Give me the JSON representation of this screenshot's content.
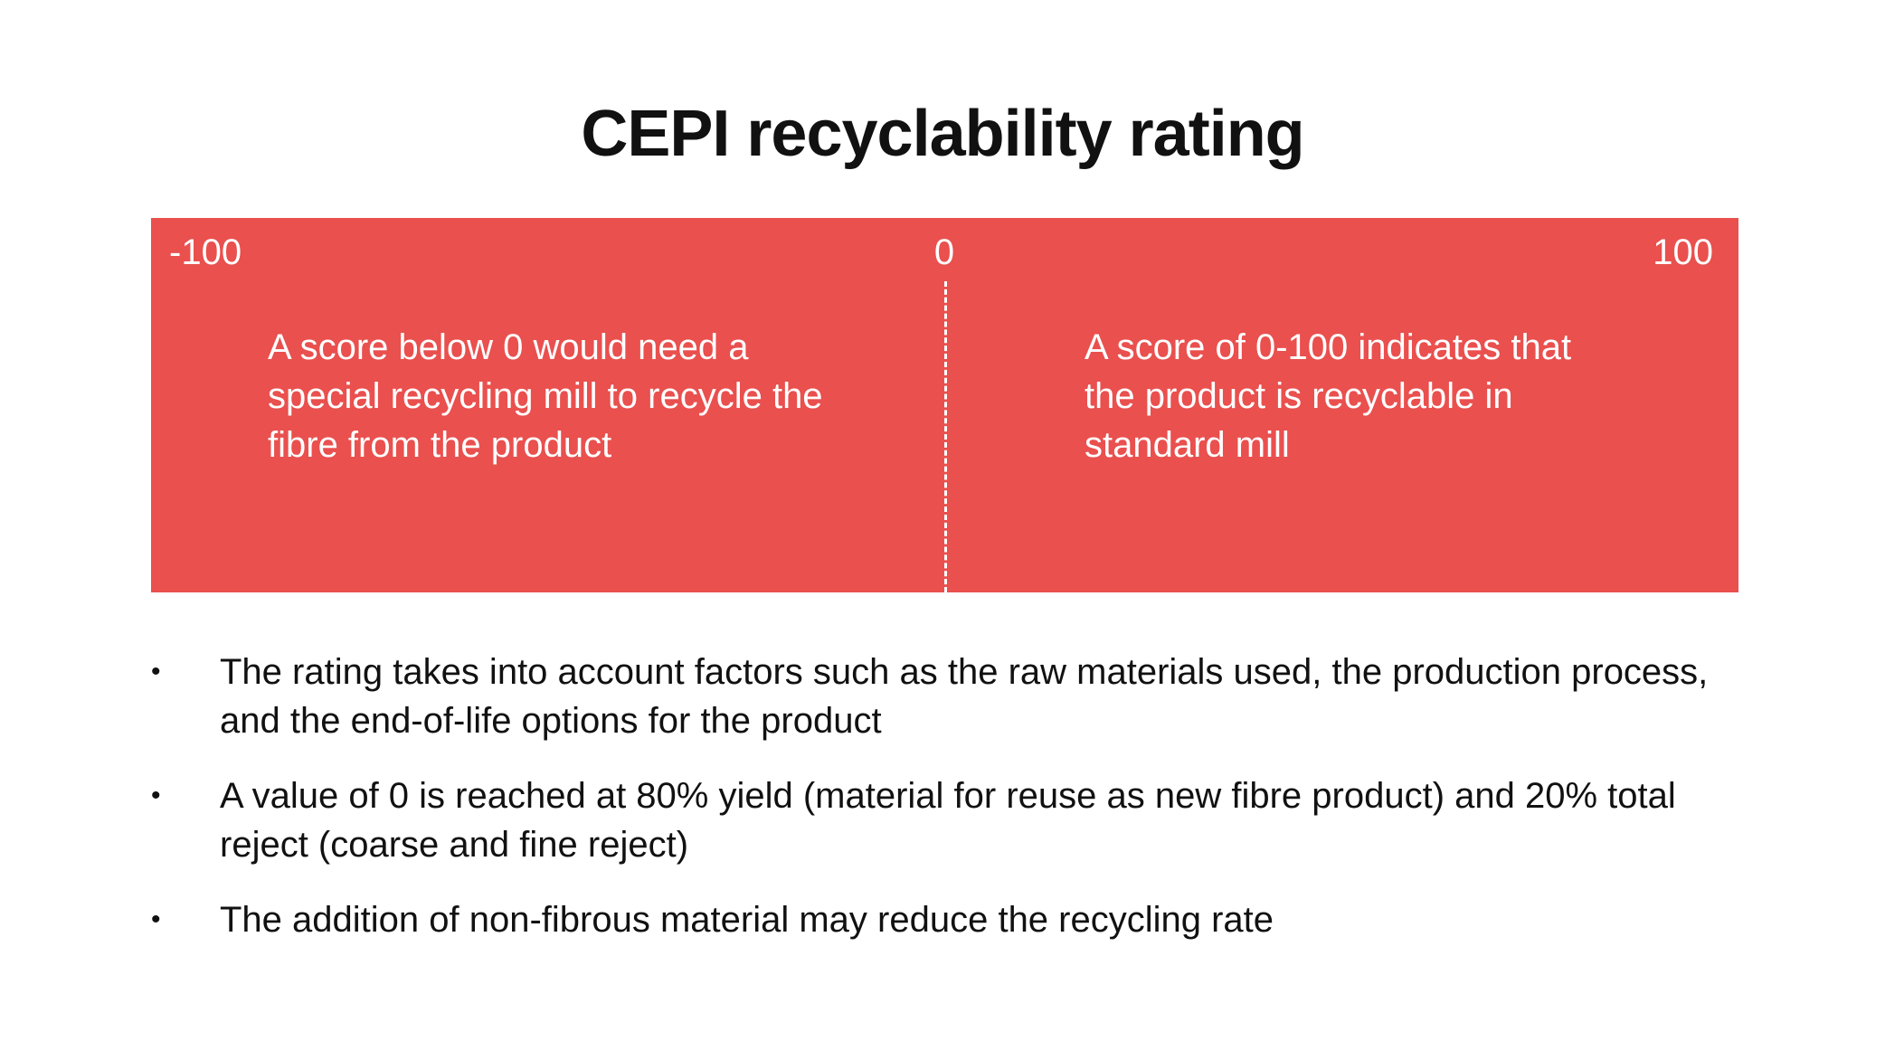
{
  "title": "CEPI recyclability rating",
  "scale": {
    "min_label": "-100",
    "mid_label": "0",
    "max_label": "100",
    "band_color": "#e9504e",
    "below_zero_text": "A score below 0 would need a special recycling mill to recycle the fibre from the product",
    "above_zero_text": "A score of 0-100 indicates that the product is recyclable in standard mill"
  },
  "bullets": [
    {
      "marker": "•",
      "text": "The rating takes into account factors such as the raw materials used, the production process, and the end-of-life options for the product"
    },
    {
      "marker": "•",
      "text": "A value of 0 is reached at 80% yield (material for reuse as new fibre product) and 20% total reject (coarse and fine reject)"
    },
    {
      "marker": "•",
      "text": "The addition of non-fibrous material may reduce the recycling rate"
    }
  ]
}
